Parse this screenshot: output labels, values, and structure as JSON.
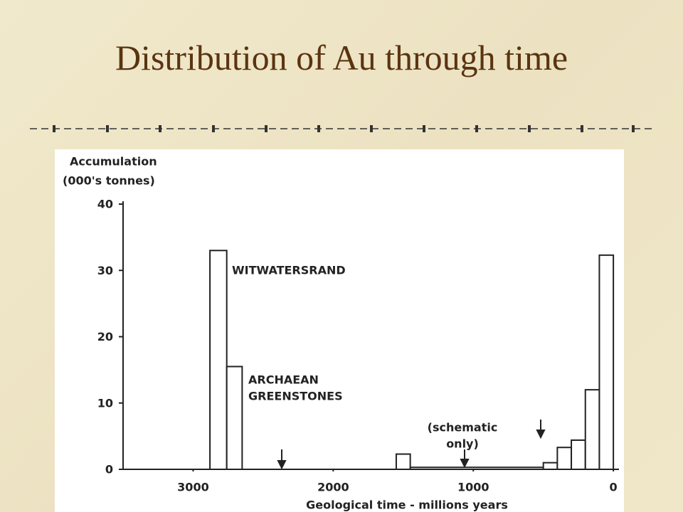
{
  "slide_title": "Distribution of Au through time",
  "chart_data": {
    "type": "histogram",
    "ylabel": [
      "Accumulation",
      "(000's tonnes)"
    ],
    "xlabel": "Geological time - millions years",
    "bins": [
      2880,
      2760,
      2650,
      1550,
      1450,
      500,
      400,
      300,
      200,
      100,
      0
    ],
    "values": [
      33,
      15.5,
      0,
      2.3,
      0.3,
      1,
      3.3,
      4.4,
      12,
      32.3
    ],
    "color": "#ffffff",
    "xlim": [
      3500,
      -40
    ],
    "xticks": [
      3000,
      2000,
      1000,
      0
    ],
    "ylim": [
      0,
      40
    ],
    "yticks": [
      0,
      10,
      20,
      30,
      40
    ],
    "annotations": [
      [
        "WITWATERSRAND"
      ],
      [
        "ARCHAEAN",
        "GREENSTONES"
      ],
      [
        "(schematic",
        "only)"
      ]
    ]
  }
}
